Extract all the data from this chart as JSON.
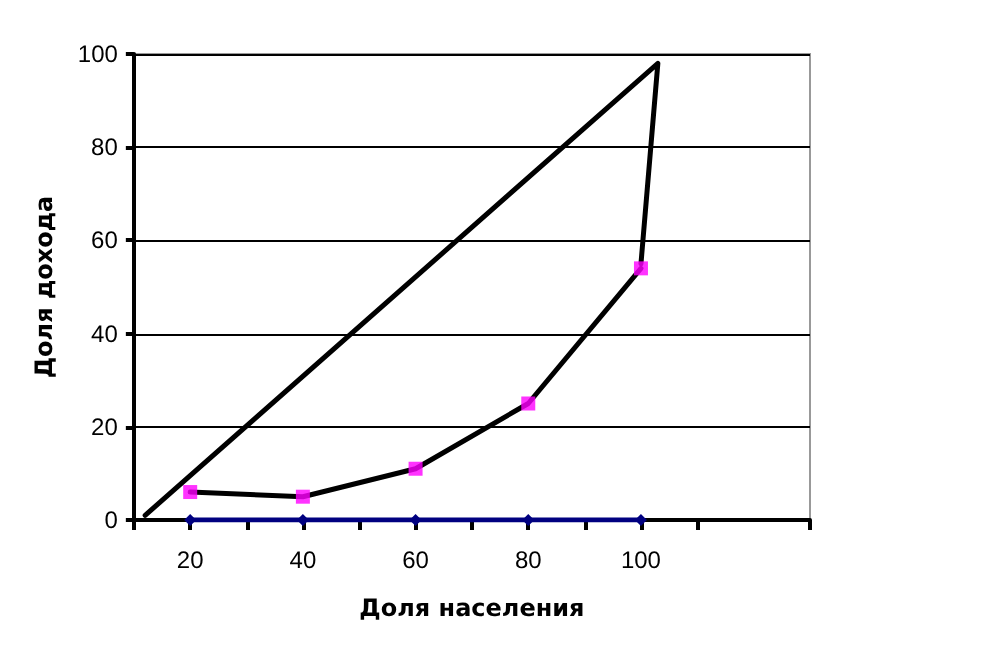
{
  "chart_data": {
    "type": "line",
    "xlabel": "Доля населения",
    "ylabel": "Доля дохода",
    "xlim": [
      10,
      130
    ],
    "xticks": [
      {
        "value": 10,
        "label": null
      },
      20,
      {
        "value": 30,
        "label": null
      },
      40,
      {
        "value": 50,
        "label": null
      },
      60,
      {
        "value": 70,
        "label": null
      },
      80,
      {
        "value": 90,
        "label": null
      },
      100,
      {
        "value": 110,
        "label": null
      },
      {
        "value": 130,
        "label": null
      }
    ],
    "ylim": [
      0,
      100
    ],
    "yticks": [
      0,
      20,
      40,
      60,
      80,
      100
    ],
    "grid": "y",
    "series": [
      {
        "color": "#000000",
        "x": [
          12,
          103,
          100
        ],
        "values": [
          1,
          98,
          55
        ],
        "marker": "none"
      },
      {
        "color": "#000000",
        "x": [
          20,
          40,
          60,
          80,
          100
        ],
        "values": [
          6,
          5,
          11,
          25,
          54
        ],
        "marker": "none"
      },
      {
        "type": "scatter",
        "color": "#ff00ff",
        "x": [
          20,
          40,
          60,
          80,
          100
        ],
        "values": [
          6,
          5,
          11,
          25,
          54
        ],
        "marker": "square"
      },
      {
        "color": "#000080",
        "x": [
          20,
          40,
          60,
          80,
          100
        ],
        "values": [
          0,
          0,
          0,
          0,
          0
        ],
        "marker": "diamond"
      }
    ]
  }
}
